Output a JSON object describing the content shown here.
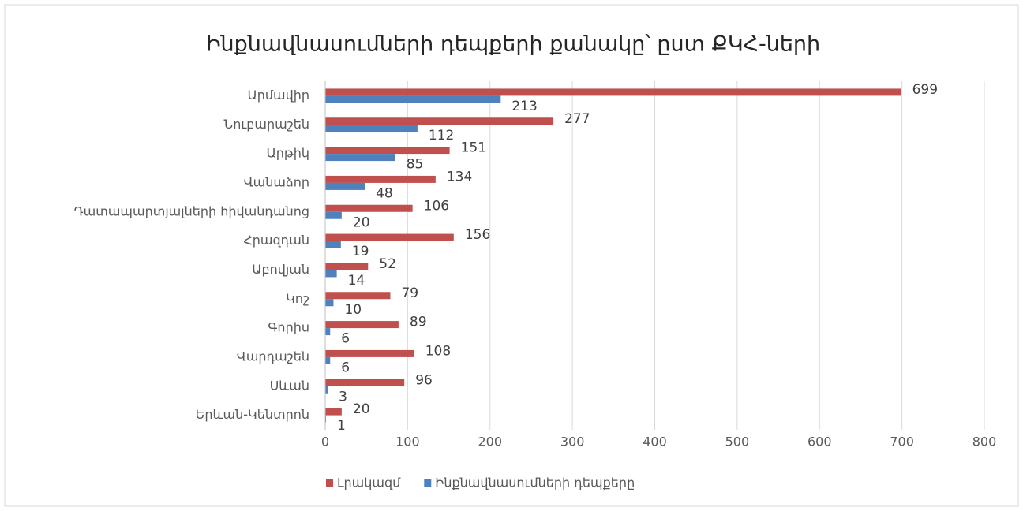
{
  "chart_data": {
    "type": "barh",
    "title": "Ինքնավնասումների դեպքերի քանակը՝ ըստ ՔԿՀ-ների",
    "categories": [
      "Արմավիր",
      "Նուբարաշեն",
      "Արթիկ",
      "Վանաձոր",
      "Դատապարտյալների հիվանդանոց",
      "Հրազդան",
      "Աբովյան",
      "Կոշ",
      "Գորիս",
      "Վարդաշեն",
      "Սևան",
      "Երևան-Կենտրոն"
    ],
    "series": [
      {
        "name": "Լրակազմ",
        "color": "#c0504d",
        "values": [
          699,
          277,
          151,
          134,
          106,
          156,
          52,
          79,
          89,
          108,
          96,
          20
        ]
      },
      {
        "name": "Ինքնավնասումների դեպքերը",
        "color": "#4f81bd",
        "values": [
          213,
          112,
          85,
          48,
          20,
          19,
          14,
          10,
          6,
          6,
          3,
          1
        ]
      }
    ],
    "xlim": [
      0,
      800
    ],
    "xticks": [
      0,
      100,
      200,
      300,
      400,
      500,
      600,
      700,
      800
    ],
    "grid": true,
    "legend": "bottom"
  }
}
